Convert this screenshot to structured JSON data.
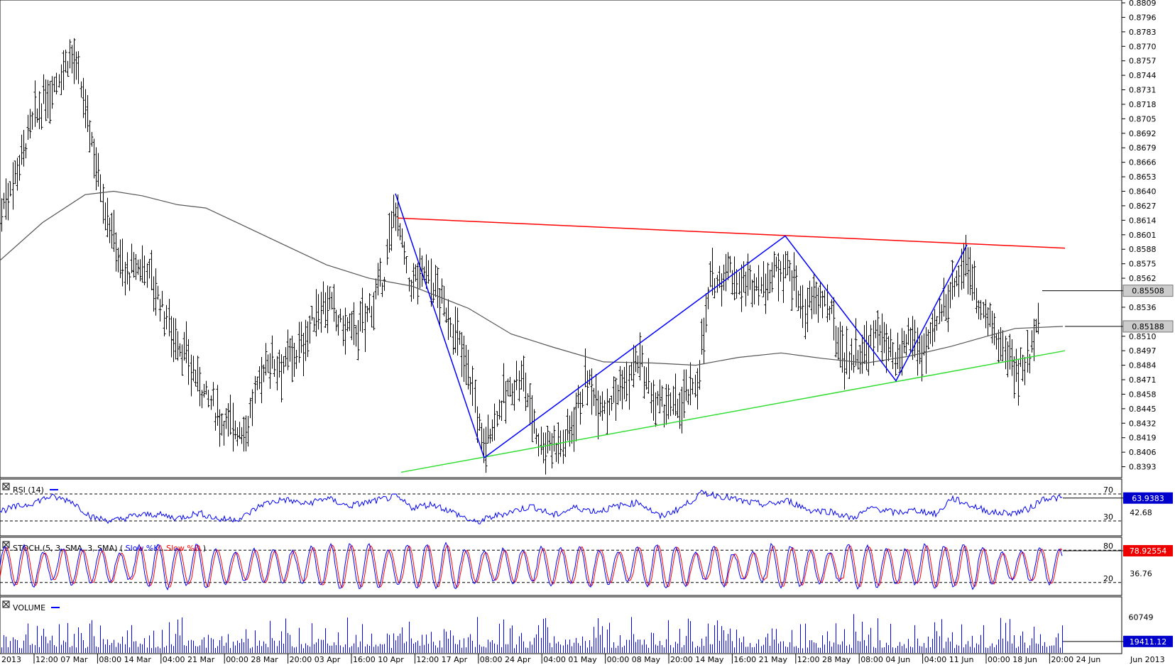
{
  "chart_data": {
    "type": "ohlc",
    "price_ticks": [
      "0.8809",
      "0.8796",
      "0.8783",
      "0.8770",
      "0.8757",
      "0.8744",
      "0.8731",
      "0.8718",
      "0.8705",
      "0.8692",
      "0.8679",
      "0.8666",
      "0.8653",
      "0.8640",
      "0.8627",
      "0.8614",
      "0.8601",
      "0.8588",
      "0.8575",
      "0.8562",
      "0.8536",
      "0.8510",
      "0.8497",
      "0.8484",
      "0.8471",
      "0.8458",
      "0.8445",
      "0.8432",
      "0.8419",
      "0.8406",
      "0.8393"
    ],
    "ylim": [
      0.8387,
      0.8809
    ],
    "last_price": "0.85508",
    "moving_average_value": "0.85188",
    "x_labels": [
      "2013",
      "12:00 07 Mar",
      "08:00 14 Mar",
      "04:00 21 Mar",
      "00:00 28 Mar",
      "20:00 03 Apr",
      "16:00 10 Apr",
      "12:00 17 Apr",
      "08:00 24 Apr",
      "04:00 01 May",
      "00:00 08 May",
      "20:00 14 May",
      "16:00 21 May",
      "12:00 28 May",
      "08:00 04 Jun",
      "04:00 11 Jun",
      "00:00 18 Jun",
      "20:00 24 Jun",
      "Jun 2013"
    ],
    "price_path": [
      {
        "x": 0,
        "y": 0.862
      },
      {
        "x": 45,
        "y": 0.87
      },
      {
        "x": 100,
        "y": 0.8765
      },
      {
        "x": 125,
        "y": 0.87
      },
      {
        "x": 150,
        "y": 0.862
      },
      {
        "x": 175,
        "y": 0.8565
      },
      {
        "x": 205,
        "y": 0.8575
      },
      {
        "x": 235,
        "y": 0.8525
      },
      {
        "x": 270,
        "y": 0.848
      },
      {
        "x": 310,
        "y": 0.8435
      },
      {
        "x": 345,
        "y": 0.8425
      },
      {
        "x": 375,
        "y": 0.849
      },
      {
        "x": 400,
        "y": 0.8485
      },
      {
        "x": 425,
        "y": 0.85
      },
      {
        "x": 455,
        "y": 0.8545
      },
      {
        "x": 480,
        "y": 0.852
      },
      {
        "x": 505,
        "y": 0.8515
      },
      {
        "x": 540,
        "y": 0.856
      },
      {
        "x": 557,
        "y": 0.863
      },
      {
        "x": 575,
        "y": 0.8555
      },
      {
        "x": 600,
        "y": 0.857
      },
      {
        "x": 630,
        "y": 0.853
      },
      {
        "x": 660,
        "y": 0.848
      },
      {
        "x": 680,
        "y": 0.841
      },
      {
        "x": 705,
        "y": 0.845
      },
      {
        "x": 735,
        "y": 0.8475
      },
      {
        "x": 760,
        "y": 0.8415
      },
      {
        "x": 795,
        "y": 0.8415
      },
      {
        "x": 825,
        "y": 0.847
      },
      {
        "x": 850,
        "y": 0.845
      },
      {
        "x": 880,
        "y": 0.8465
      },
      {
        "x": 900,
        "y": 0.849
      },
      {
        "x": 920,
        "y": 0.845
      },
      {
        "x": 950,
        "y": 0.8445
      },
      {
        "x": 980,
        "y": 0.8465
      },
      {
        "x": 1000,
        "y": 0.8555
      },
      {
        "x": 1025,
        "y": 0.857
      },
      {
        "x": 1050,
        "y": 0.8555
      },
      {
        "x": 1080,
        "y": 0.856
      },
      {
        "x": 1105,
        "y": 0.858
      },
      {
        "x": 1130,
        "y": 0.8535
      },
      {
        "x": 1160,
        "y": 0.8545
      },
      {
        "x": 1190,
        "y": 0.849
      },
      {
        "x": 1215,
        "y": 0.8495
      },
      {
        "x": 1240,
        "y": 0.8515
      },
      {
        "x": 1262,
        "y": 0.848
      },
      {
        "x": 1280,
        "y": 0.851
      },
      {
        "x": 1305,
        "y": 0.8495
      },
      {
        "x": 1330,
        "y": 0.854
      },
      {
        "x": 1360,
        "y": 0.858
      },
      {
        "x": 1385,
        "y": 0.853
      },
      {
        "x": 1410,
        "y": 0.85
      },
      {
        "x": 1435,
        "y": 0.848
      },
      {
        "x": 1450,
        "y": 0.849
      },
      {
        "x": 1465,
        "y": 0.855
      }
    ],
    "moving_average": [
      {
        "x": 0,
        "y": 0.8578
      },
      {
        "x": 60,
        "y": 0.8612
      },
      {
        "x": 120,
        "y": 0.8637
      },
      {
        "x": 160,
        "y": 0.864
      },
      {
        "x": 200,
        "y": 0.8636
      },
      {
        "x": 250,
        "y": 0.8628
      },
      {
        "x": 290,
        "y": 0.8625
      },
      {
        "x": 340,
        "y": 0.861
      },
      {
        "x": 400,
        "y": 0.8592
      },
      {
        "x": 460,
        "y": 0.8574
      },
      {
        "x": 520,
        "y": 0.8562
      },
      {
        "x": 580,
        "y": 0.8555
      },
      {
        "x": 660,
        "y": 0.8535
      },
      {
        "x": 720,
        "y": 0.8512
      },
      {
        "x": 780,
        "y": 0.85
      },
      {
        "x": 850,
        "y": 0.8487
      },
      {
        "x": 920,
        "y": 0.8486
      },
      {
        "x": 980,
        "y": 0.8484
      },
      {
        "x": 1040,
        "y": 0.8491
      },
      {
        "x": 1100,
        "y": 0.8495
      },
      {
        "x": 1160,
        "y": 0.849
      },
      {
        "x": 1220,
        "y": 0.8486
      },
      {
        "x": 1280,
        "y": 0.8492
      },
      {
        "x": 1340,
        "y": 0.8501
      },
      {
        "x": 1390,
        "y": 0.851
      },
      {
        "x": 1430,
        "y": 0.8517
      },
      {
        "x": 1497,
        "y": 0.85188
      }
    ],
    "resistance_line": {
      "color": "#ff0000",
      "from": {
        "x": 560,
        "y": 0.8616
      },
      "to": {
        "x": 1500,
        "y": 0.8589
      }
    },
    "support_line": {
      "color": "#33dd33",
      "from": {
        "x": 565,
        "y": 0.8388
      },
      "to": {
        "x": 1500,
        "y": 0.8497
      }
    },
    "zigzag": {
      "color": "#0000ff",
      "points": [
        {
          "x": 557,
          "y": 0.8638
        },
        {
          "x": 682,
          "y": 0.8401
        },
        {
          "x": 1106,
          "y": 0.86
        },
        {
          "x": 1262,
          "y": 0.847
        },
        {
          "x": 1362,
          "y": 0.8592
        }
      ]
    },
    "rsi": {
      "label": "RSI (14)",
      "levels": [
        "70",
        "30"
      ],
      "level_values": [
        70,
        30
      ],
      "ylim": [
        10,
        90
      ],
      "current": "63.9383",
      "mid_label": "42.68",
      "path": [
        {
          "x": 0,
          "y": 45
        },
        {
          "x": 40,
          "y": 55
        },
        {
          "x": 70,
          "y": 66
        },
        {
          "x": 100,
          "y": 60
        },
        {
          "x": 130,
          "y": 35
        },
        {
          "x": 160,
          "y": 30
        },
        {
          "x": 190,
          "y": 38
        },
        {
          "x": 220,
          "y": 40
        },
        {
          "x": 250,
          "y": 34
        },
        {
          "x": 280,
          "y": 42
        },
        {
          "x": 310,
          "y": 32
        },
        {
          "x": 340,
          "y": 34
        },
        {
          "x": 370,
          "y": 55
        },
        {
          "x": 400,
          "y": 62
        },
        {
          "x": 430,
          "y": 55
        },
        {
          "x": 460,
          "y": 64
        },
        {
          "x": 490,
          "y": 52
        },
        {
          "x": 520,
          "y": 58
        },
        {
          "x": 557,
          "y": 66
        },
        {
          "x": 580,
          "y": 50
        },
        {
          "x": 610,
          "y": 55
        },
        {
          "x": 640,
          "y": 42
        },
        {
          "x": 670,
          "y": 27
        },
        {
          "x": 690,
          "y": 35
        },
        {
          "x": 720,
          "y": 44
        },
        {
          "x": 750,
          "y": 52
        },
        {
          "x": 780,
          "y": 38
        },
        {
          "x": 810,
          "y": 50
        },
        {
          "x": 840,
          "y": 44
        },
        {
          "x": 870,
          "y": 52
        },
        {
          "x": 900,
          "y": 58
        },
        {
          "x": 930,
          "y": 36
        },
        {
          "x": 960,
          "y": 50
        },
        {
          "x": 990,
          "y": 72
        },
        {
          "x": 1020,
          "y": 66
        },
        {
          "x": 1050,
          "y": 58
        },
        {
          "x": 1080,
          "y": 54
        },
        {
          "x": 1110,
          "y": 60
        },
        {
          "x": 1140,
          "y": 46
        },
        {
          "x": 1170,
          "y": 44
        },
        {
          "x": 1200,
          "y": 34
        },
        {
          "x": 1230,
          "y": 50
        },
        {
          "x": 1260,
          "y": 42
        },
        {
          "x": 1290,
          "y": 46
        },
        {
          "x": 1320,
          "y": 40
        },
        {
          "x": 1340,
          "y": 64
        },
        {
          "x": 1370,
          "y": 52
        },
        {
          "x": 1400,
          "y": 42
        },
        {
          "x": 1430,
          "y": 42
        },
        {
          "x": 1450,
          "y": 48
        },
        {
          "x": 1470,
          "y": 64
        },
        {
          "x": 1497,
          "y": 63.9
        }
      ]
    },
    "stoch": {
      "label": "STOCH (5, 3, SMA, 3, SMA)",
      "legend_k": "Slow %K",
      "legend_d": "Slow %D",
      "k_color": "#0000ff",
      "d_color": "#ff0000",
      "levels": [
        "80",
        "20"
      ],
      "level_values": [
        80,
        20
      ],
      "ylim": [
        0,
        100
      ],
      "current": "78.92554",
      "mid_label": "36.76",
      "cycle_period_px": 27,
      "end_x": 1497
    },
    "volume": {
      "label": "VOLUME",
      "max_label": "60749",
      "current": "19411.12",
      "ylim": [
        0,
        90000
      ],
      "bar_color": "#0000ff"
    }
  }
}
